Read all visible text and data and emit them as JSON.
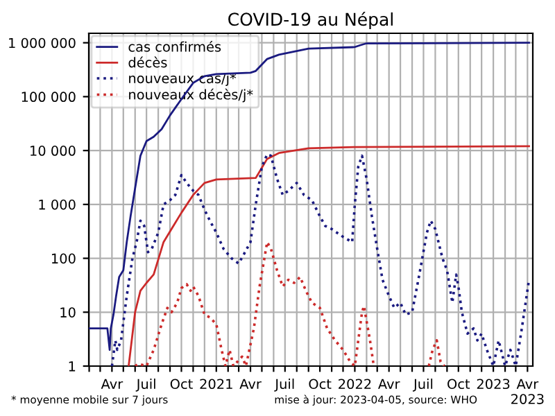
{
  "chart_data": {
    "type": "line",
    "title": "COVID-19 au Népal",
    "annotations": [
      "* moyenne mobile sur 7 jours",
      "mise à jour: 2023-04-05, source: WHO"
    ],
    "log": "y",
    "grid": true,
    "legend": "top left",
    "ylim": [
      1,
      1500000
    ],
    "yticks": [
      1,
      10,
      100,
      {
        "value": 1000,
        "label": "1 000"
      },
      {
        "value": 10000,
        "label": "10 000"
      },
      {
        "value": 100000,
        "label": "100 000"
      },
      {
        "value": 1000000,
        "label": "1 000 000"
      }
    ],
    "xlim": [
      "2020-01-31",
      "2023-04-15"
    ],
    "xticks": [
      {
        "value": "2020-02-01",
        "label": null
      },
      {
        "value": "2020-03-01",
        "label": null
      },
      {
        "value": "2020-04-01",
        "label": "Avr"
      },
      {
        "value": "2020-05-01",
        "label": null
      },
      {
        "value": "2020-06-01",
        "label": null
      },
      {
        "value": "2020-07-01",
        "label": "Juil"
      },
      {
        "value": "2020-08-01",
        "label": null
      },
      {
        "value": "2020-09-01",
        "label": null
      },
      {
        "value": "2020-10-01",
        "label": "Oct"
      },
      {
        "value": "2020-11-01",
        "label": null
      },
      {
        "value": "2020-12-01",
        "label": null
      },
      {
        "value": "2021-01-01",
        "label": "2021"
      },
      {
        "value": "2021-02-01",
        "label": null
      },
      {
        "value": "2021-03-01",
        "label": null
      },
      {
        "value": "2021-04-01",
        "label": "Avr"
      },
      {
        "value": "2021-05-01",
        "label": null
      },
      {
        "value": "2021-06-01",
        "label": null
      },
      {
        "value": "2021-07-01",
        "label": "Juil"
      },
      {
        "value": "2021-08-01",
        "label": null
      },
      {
        "value": "2021-09-01",
        "label": null
      },
      {
        "value": "2021-10-01",
        "label": "Oct"
      },
      {
        "value": "2021-11-01",
        "label": null
      },
      {
        "value": "2021-12-01",
        "label": null
      },
      {
        "value": "2022-01-01",
        "label": "2022"
      },
      {
        "value": "2022-02-01",
        "label": null
      },
      {
        "value": "2022-03-01",
        "label": null
      },
      {
        "value": "2022-04-01",
        "label": "Avr"
      },
      {
        "value": "2022-05-01",
        "label": null
      },
      {
        "value": "2022-06-01",
        "label": null
      },
      {
        "value": "2022-07-01",
        "label": "Juil"
      },
      {
        "value": "2022-08-01",
        "label": null
      },
      {
        "value": "2022-09-01",
        "label": null
      },
      {
        "value": "2022-10-01",
        "label": "Oct"
      },
      {
        "value": "2022-11-01",
        "label": null
      },
      {
        "value": "2022-12-01",
        "label": null
      },
      {
        "value": "2023-01-01",
        "label": "2023"
      },
      {
        "value": "2023-02-01",
        "label": null
      },
      {
        "value": "2023-03-01",
        "label": null
      },
      {
        "value": "2023-04-01",
        "label": "Avr\n2023"
      }
    ],
    "series": [
      {
        "name": "cas confirmés",
        "color": "#1a1a80",
        "line_style": "solid",
        "x": [
          "2020-01-31",
          "2020-03-20",
          "2020-03-26",
          "2020-03-29",
          "2020-04-05",
          "2020-04-12",
          "2020-04-20",
          "2020-05-01",
          "2020-05-10",
          "2020-05-20",
          "2020-06-01",
          "2020-06-15",
          "2020-07-01",
          "2020-07-20",
          "2020-08-10",
          "2020-09-01",
          "2020-10-01",
          "2020-11-01",
          "2020-12-01",
          "2021-01-01",
          "2021-04-01",
          "2021-04-15",
          "2021-05-15",
          "2021-06-15",
          "2021-09-01",
          "2021-12-31",
          "2022-01-15",
          "2022-02-01",
          "2022-07-01",
          "2023-04-05"
        ],
        "values": [
          5,
          5,
          2,
          5,
          9,
          20,
          45,
          60,
          200,
          600,
          2000,
          8000,
          15000,
          18000,
          25000,
          45000,
          90000,
          180000,
          240000,
          262000,
          278000,
          300000,
          500000,
          600000,
          780000,
          830000,
          900000,
          975000,
          980000,
          1001000
        ]
      },
      {
        "name": "décès",
        "color": "#cc2a2a",
        "line_style": "solid",
        "x": [
          "2020-05-15",
          "2020-06-01",
          "2020-06-15",
          "2020-07-01",
          "2020-07-20",
          "2020-08-15",
          "2020-09-10",
          "2020-10-01",
          "2020-11-01",
          "2020-12-01",
          "2021-01-01",
          "2021-04-15",
          "2021-05-15",
          "2021-06-15",
          "2021-09-01",
          "2022-01-01",
          "2023-04-05"
        ],
        "values": [
          1,
          10,
          25,
          35,
          50,
          200,
          400,
          700,
          1500,
          2500,
          2900,
          3100,
          7000,
          9000,
          11000,
          11600,
          12000
        ]
      },
      {
        "name": "nouveaux cas/j*",
        "color": "#1a1a80",
        "line_style": "dotted",
        "x": [
          "2020-04-01",
          "2020-04-10",
          "2020-04-15",
          "2020-04-25",
          "2020-05-10",
          "2020-05-25",
          "2020-06-05",
          "2020-06-15",
          "2020-06-25",
          "2020-07-05",
          "2020-07-15",
          "2020-08-01",
          "2020-08-15",
          "2020-09-01",
          "2020-09-15",
          "2020-10-01",
          "2020-10-15",
          "2020-11-01",
          "2020-11-15",
          "2020-12-01",
          "2020-12-15",
          "2021-01-01",
          "2021-01-20",
          "2021-02-10",
          "2021-03-01",
          "2021-03-15",
          "2021-04-01",
          "2021-04-15",
          "2021-05-01",
          "2021-05-15",
          "2021-05-25",
          "2021-06-10",
          "2021-06-25",
          "2021-07-10",
          "2021-08-01",
          "2021-08-20",
          "2021-09-10",
          "2021-10-01",
          "2021-10-15",
          "2021-11-01",
          "2021-12-01",
          "2021-12-25",
          "2022-01-01",
          "2022-01-10",
          "2022-01-20",
          "2022-02-01",
          "2022-02-15",
          "2022-03-01",
          "2022-03-15",
          "2022-04-01",
          "2022-04-15",
          "2022-05-01",
          "2022-05-15",
          "2022-06-01",
          "2022-06-20",
          "2022-07-10",
          "2022-07-20",
          "2022-08-01",
          "2022-08-20",
          "2022-09-01",
          "2022-09-15",
          "2022-09-25",
          "2022-10-01",
          "2022-10-10",
          "2022-10-25",
          "2022-11-10",
          "2022-11-20",
          "2022-12-01",
          "2022-12-15",
          "2023-01-01",
          "2023-01-15",
          "2023-02-01",
          "2023-02-15",
          "2023-03-01",
          "2023-03-15",
          "2023-04-05"
        ],
        "values": [
          1,
          3,
          2,
          3,
          20,
          100,
          200,
          500,
          400,
          130,
          150,
          300,
          1000,
          1200,
          1500,
          3500,
          2500,
          1800,
          1500,
          800,
          500,
          300,
          150,
          100,
          80,
          120,
          200,
          1000,
          5000,
          8500,
          8000,
          3000,
          1500,
          1800,
          2500,
          1500,
          1200,
          600,
          400,
          350,
          250,
          200,
          1000,
          5000,
          8000,
          3000,
          600,
          150,
          40,
          20,
          12,
          15,
          9,
          10,
          50,
          300,
          500,
          350,
          100,
          60,
          15,
          50,
          30,
          10,
          4,
          5,
          3,
          4,
          2,
          1,
          3,
          1,
          2,
          1,
          4,
          40
        ]
      },
      {
        "name": "nouveaux décès/j*",
        "color": "#cc2a2a",
        "line_style": "dotted",
        "x": [
          "2020-06-01",
          "2020-06-10",
          "2020-07-01",
          "2020-07-20",
          "2020-08-10",
          "2020-08-25",
          "2020-09-05",
          "2020-09-20",
          "2020-10-01",
          "2020-10-15",
          "2020-10-25",
          "2020-11-01",
          "2020-11-15",
          "2020-12-01",
          "2020-12-15",
          "2021-01-01",
          "2021-01-15",
          "2021-01-25",
          "2021-02-05",
          "2021-02-15",
          "2021-03-10",
          "2021-03-20",
          "2021-04-10",
          "2021-04-25",
          "2021-05-15",
          "2021-05-25",
          "2021-06-10",
          "2021-06-25",
          "2021-07-10",
          "2021-07-25",
          "2021-08-10",
          "2021-08-25",
          "2021-09-10",
          "2021-10-01",
          "2021-10-20",
          "2021-11-10",
          "2021-12-01",
          "2021-12-20",
          "2022-01-01",
          "2022-01-20",
          "2022-01-25",
          "2022-02-10",
          "2022-02-20",
          "2022-05-01",
          "2022-07-15",
          "2022-07-25",
          "2022-08-05",
          "2022-08-15",
          "2022-08-25"
        ],
        "values": [
          1,
          1.1,
          1,
          2,
          6,
          12,
          10,
          15,
          28,
          33,
          25,
          30,
          20,
          9,
          8,
          6,
          2,
          1,
          2,
          1,
          1.5,
          1,
          5,
          30,
          200,
          150,
          60,
          30,
          40,
          35,
          45,
          25,
          15,
          12,
          5,
          3,
          2,
          1.2,
          1,
          10,
          13,
          3,
          1,
          null,
          1,
          2,
          3,
          1.2,
          1
        ]
      }
    ]
  }
}
